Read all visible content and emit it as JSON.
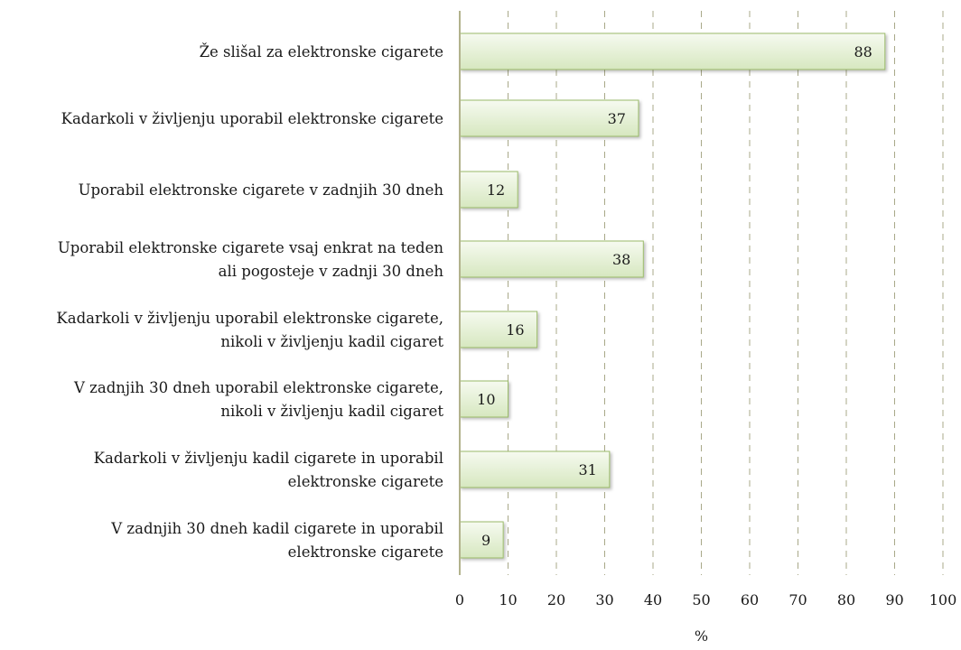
{
  "chart_data": {
    "type": "bar",
    "orientation": "horizontal",
    "categories": [
      [
        "Že slišal za elektronske cigarete"
      ],
      [
        "Kadarkoli v življenju uporabil elektronske cigarete"
      ],
      [
        "Uporabil elektronske cigarete v zadnjih 30 dneh"
      ],
      [
        "Uporabil elektronske cigarete vsaj enkrat na teden",
        "ali pogosteje v zadnji 30 dneh"
      ],
      [
        "Kadarkoli v življenju uporabil elektronske cigarete,",
        "nikoli v življenju kadil cigaret"
      ],
      [
        "V zadnjih 30 dneh uporabil elektronske cigarete,",
        "nikoli v življenju kadil cigaret"
      ],
      [
        "Kadarkoli v življenju kadil cigarete in uporabil",
        "elektronske cigarete"
      ],
      [
        "V zadnjih 30 dneh kadil cigarete in uporabil",
        "elektronske cigarete"
      ]
    ],
    "values": [
      88,
      37,
      12,
      38,
      16,
      10,
      31,
      9
    ],
    "xlabel": "%",
    "xlim": [
      0,
      100
    ],
    "xticks": [
      "0",
      "10",
      "20",
      "30",
      "40",
      "50",
      "60",
      "70",
      "80",
      "90",
      "100"
    ],
    "grid": "vertical dashed",
    "legend": "none",
    "colors": {
      "bar_fill_light": "#f6faf0",
      "bar_fill_dark": "#d6e7bf",
      "bar_stroke": "#9bbb6a",
      "grid": "#a8a888",
      "axis": "#b2b28c"
    }
  }
}
